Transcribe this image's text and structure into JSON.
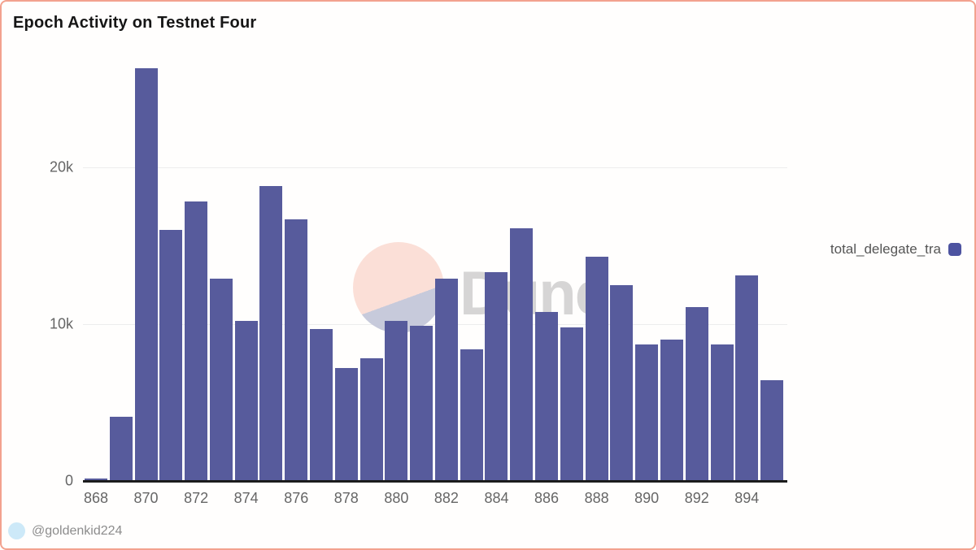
{
  "title": "Epoch Activity on Testnet Four",
  "watermark": {
    "text": "Dune"
  },
  "legend": {
    "label": "total_delegate_tra",
    "position": "right"
  },
  "footer": {
    "handle": "@goldenkid224"
  },
  "colors": {
    "bar": "#575b9c",
    "legend_swatch": "#4d53a0",
    "border": "#f3a28e",
    "grid": "#ededed",
    "axis": "#1c1c1c",
    "tick_text": "#666666",
    "watermark_pink": "#fbdfd7",
    "watermark_lavender": "#c7cadb",
    "avatar_blue": "#cde9f8"
  },
  "chart_data": {
    "type": "bar",
    "title": "Epoch Activity on Testnet Four",
    "xlabel": "",
    "ylabel": "",
    "x": [
      868,
      869,
      870,
      871,
      872,
      873,
      874,
      875,
      876,
      877,
      878,
      879,
      880,
      881,
      882,
      883,
      884,
      885,
      886,
      887,
      888,
      889,
      890,
      891,
      892,
      893,
      894,
      895
    ],
    "series": [
      {
        "name": "total_delegate_tra",
        "values": [
          150,
          4100,
          26300,
          16000,
          17800,
          12900,
          10200,
          18800,
          16700,
          9700,
          7200,
          7800,
          10200,
          9900,
          12900,
          8400,
          13300,
          16100,
          10800,
          9800,
          14300,
          12500,
          8700,
          9000,
          11100,
          8700,
          13100,
          6400
        ]
      }
    ],
    "x_tick_labels": [
      "868",
      "870",
      "872",
      "874",
      "876",
      "878",
      "880",
      "882",
      "884",
      "886",
      "888",
      "890",
      "892",
      "894"
    ],
    "y_ticks": [
      {
        "value": 0,
        "label": "0"
      },
      {
        "value": 10000,
        "label": "10k"
      },
      {
        "value": 20000,
        "label": "20k"
      }
    ],
    "ylim": [
      0,
      27000
    ],
    "grid": "horizontal",
    "legend_position": "right"
  }
}
